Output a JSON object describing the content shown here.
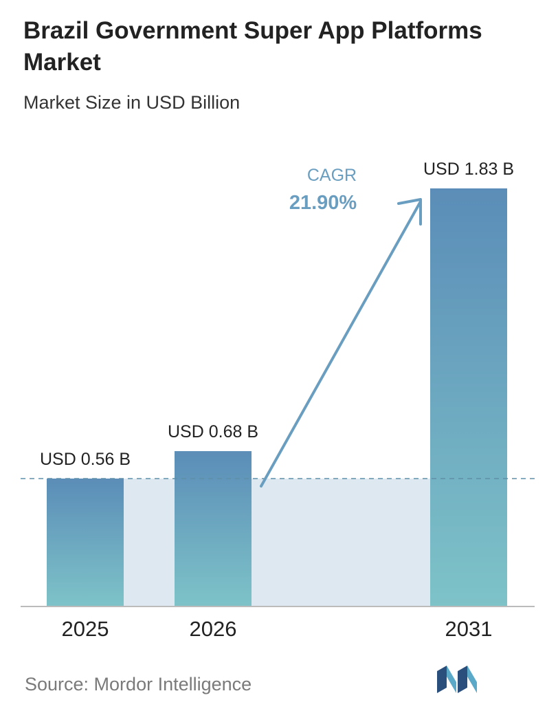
{
  "header": {
    "title": "Brazil Government Super App Platforms Market",
    "subtitle": "Market Size in USD Billion"
  },
  "cagr": {
    "label": "CAGR",
    "value": "21.90%"
  },
  "footer": {
    "source": "Source: Mordor Intelligence"
  },
  "colors": {
    "bar_top": "#5b8db8",
    "bar_bottom": "#7ec3c8",
    "band": "#dde8f1",
    "cagr": "#6a9ec0",
    "axis": "#bbbbbb"
  },
  "chart_data": {
    "type": "bar",
    "categories": [
      "2025",
      "2026",
      "2031"
    ],
    "values": [
      0.56,
      0.68,
      1.83
    ],
    "value_labels": [
      "USD 0.56 B",
      "USD 0.68 B",
      "USD 1.83 B"
    ],
    "title": "Brazil Government Super App Platforms Market",
    "subtitle": "Market Size in USD Billion",
    "xlabel": "",
    "ylabel": "",
    "ylim": [
      0,
      1.83
    ],
    "grid": false,
    "legend": "none",
    "reference_line_value": 0.56
  }
}
